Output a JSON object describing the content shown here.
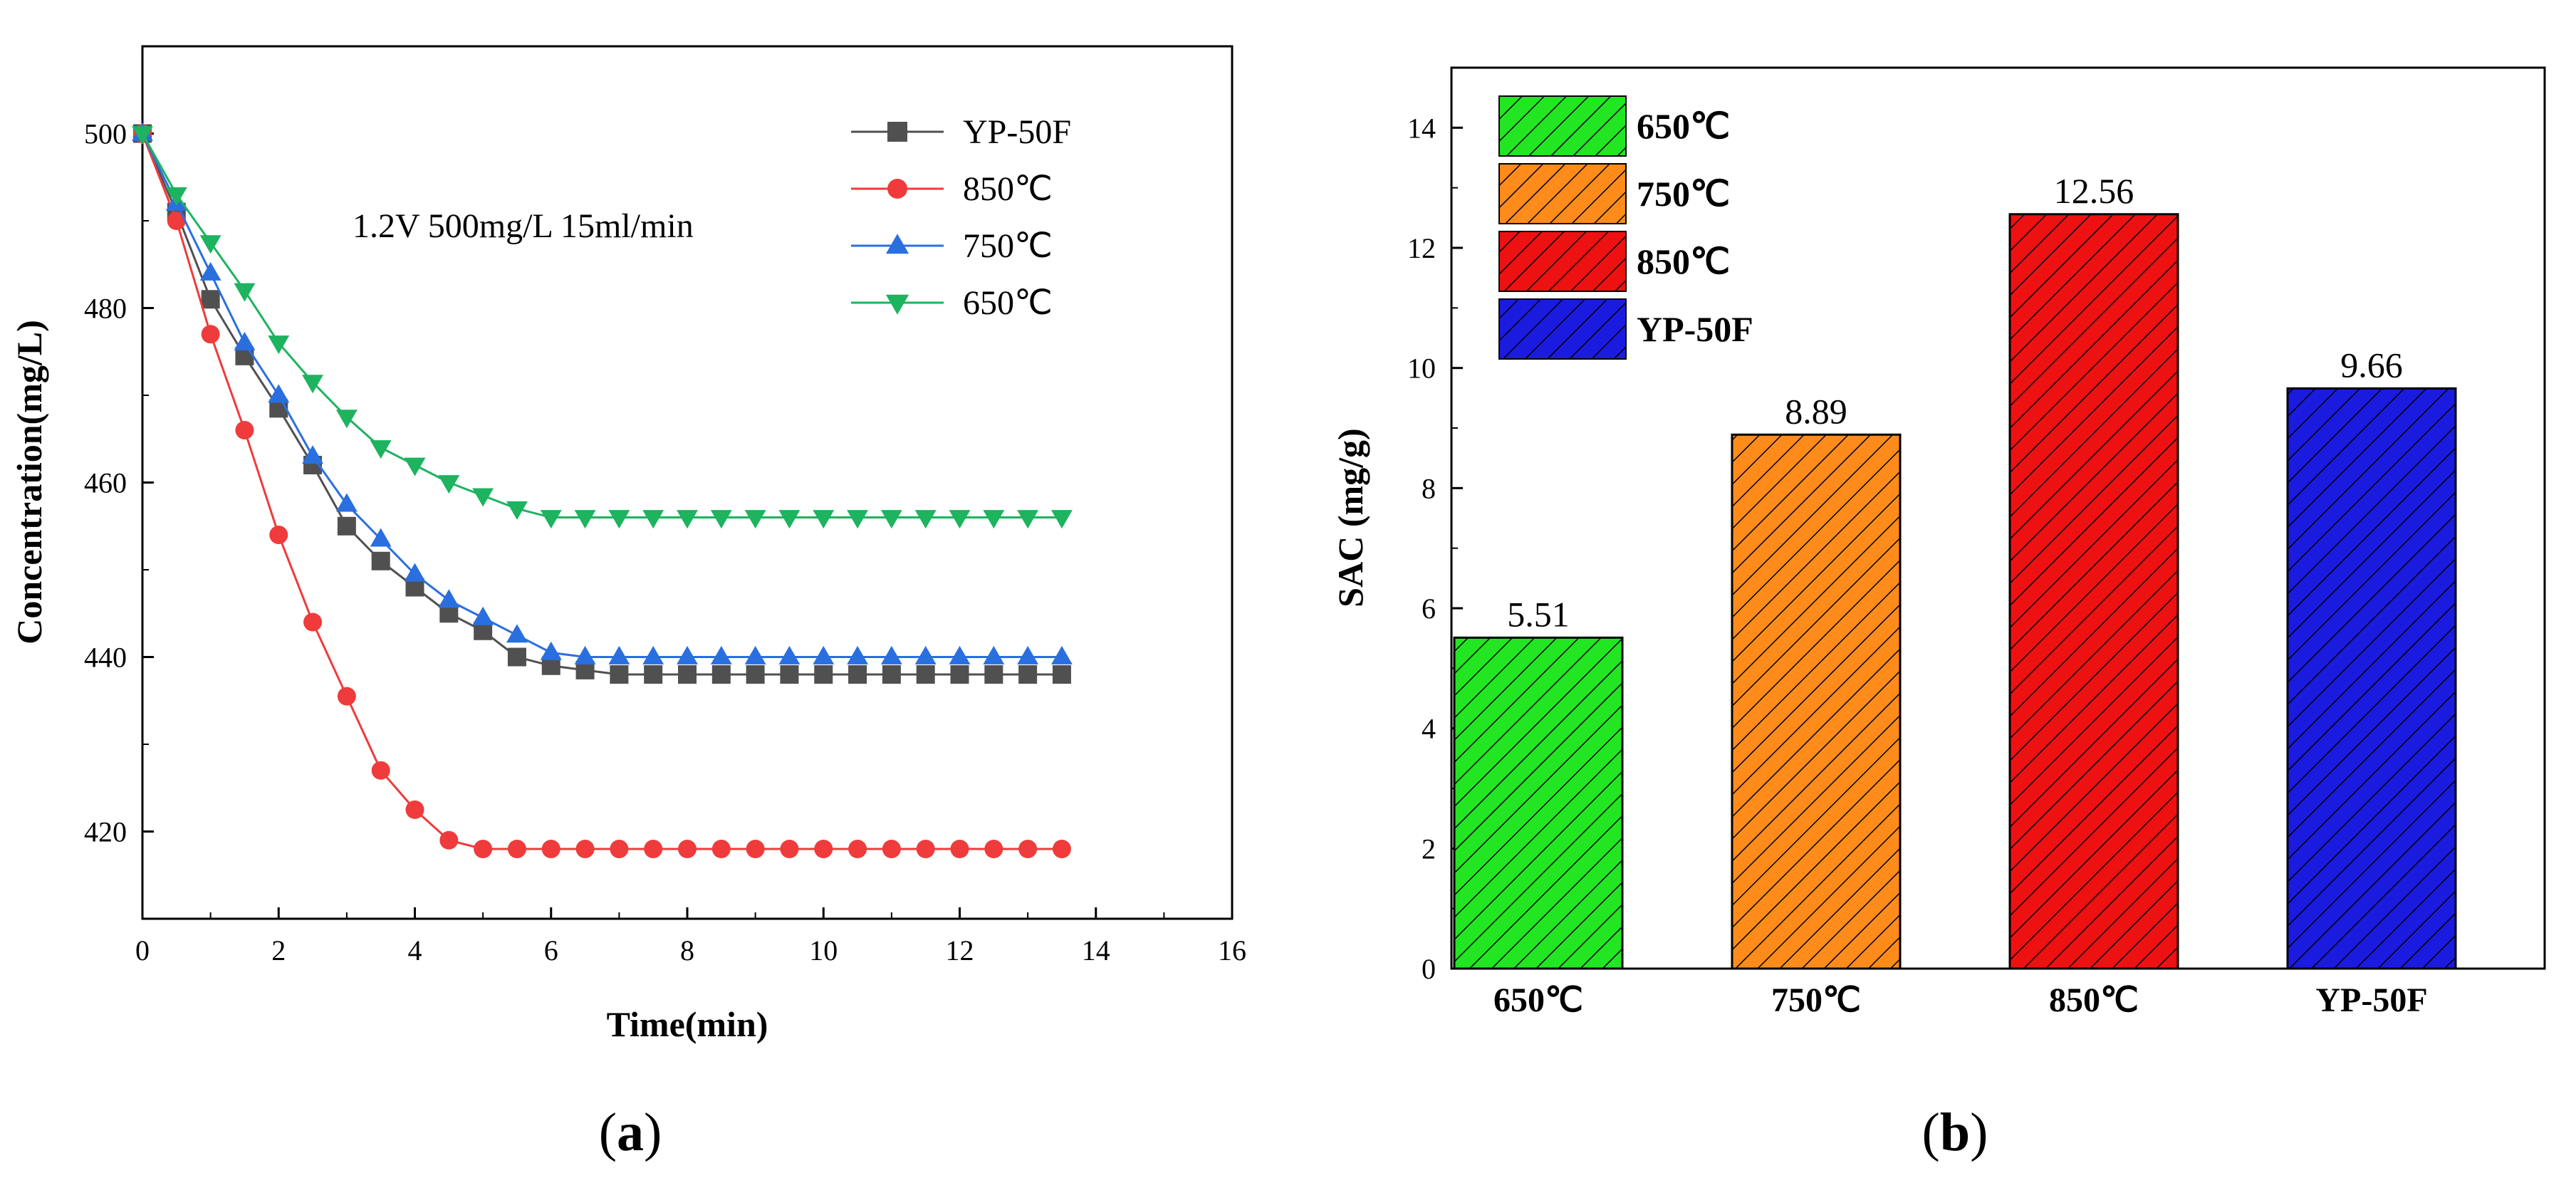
{
  "chart_data": [
    {
      "type": "line",
      "panel_label": "a",
      "xlabel": "Time(min)",
      "ylabel": "Concentration(mg/L)",
      "xlim": [
        0,
        16
      ],
      "ylim": [
        410,
        510
      ],
      "xticks": [
        0,
        2,
        4,
        6,
        8,
        10,
        12,
        14,
        16
      ],
      "yticks": [
        420,
        440,
        460,
        480,
        500
      ],
      "annotation": "1.2V 500mg/L 15ml/min",
      "legend_position": "top-right",
      "x": [
        0,
        0.5,
        1,
        1.5,
        2,
        2.5,
        3,
        3.5,
        4,
        4.5,
        5,
        5.5,
        6,
        6.5,
        7,
        7.5,
        8,
        8.5,
        9,
        9.5,
        10,
        10.5,
        11,
        11.5,
        12,
        12.5,
        13,
        13.5
      ],
      "series": [
        {
          "name": "YP-50F",
          "color": "#505050",
          "marker": "square",
          "values": [
            500,
            491,
            481,
            474.5,
            468.5,
            462,
            455,
            451,
            448,
            445,
            443,
            440,
            439,
            438.5,
            438,
            438,
            438,
            438,
            438,
            438,
            438,
            438,
            438,
            438,
            438,
            438,
            438,
            438
          ]
        },
        {
          "name": "850℃",
          "color": "#ef3b3b",
          "marker": "circle",
          "values": [
            500,
            490,
            477,
            466,
            454,
            444,
            435.5,
            427,
            422.5,
            419,
            418,
            418,
            418,
            418,
            418,
            418,
            418,
            418,
            418,
            418,
            418,
            418,
            418,
            418,
            418,
            418,
            418,
            418
          ]
        },
        {
          "name": "750℃",
          "color": "#2a6fe0",
          "marker": "triangle-up",
          "values": [
            500,
            492,
            484,
            476,
            470,
            463,
            457.5,
            453.5,
            449.5,
            446.5,
            444.5,
            442.5,
            440.5,
            440,
            440,
            440,
            440,
            440,
            440,
            440,
            440,
            440,
            440,
            440,
            440,
            440,
            440,
            440
          ]
        },
        {
          "name": "650℃",
          "color": "#1db35f",
          "marker": "triangle-down",
          "values": [
            500,
            493,
            487.5,
            482,
            476,
            471.5,
            467.5,
            464,
            462,
            460,
            458.5,
            457,
            456,
            456,
            456,
            456,
            456,
            456,
            456,
            456,
            456,
            456,
            456,
            456,
            456,
            456,
            456,
            456
          ]
        }
      ]
    },
    {
      "type": "bar",
      "panel_label": "b",
      "xlabel": "",
      "ylabel": "SAC (mg/g)",
      "ylim": [
        0,
        15
      ],
      "yticks": [
        0,
        2,
        4,
        6,
        8,
        10,
        12,
        14
      ],
      "categories": [
        "650℃",
        "750℃",
        "850℃",
        "YP-50F"
      ],
      "values": [
        5.51,
        8.89,
        12.56,
        9.66
      ],
      "value_labels": [
        "5.51",
        "8.89",
        "12.56",
        "9.66"
      ],
      "colors": [
        "#22e622",
        "#ff8c1a",
        "#ee1111",
        "#1b1be0"
      ],
      "legend_position": "top-left",
      "legend": [
        "650℃",
        "750℃",
        "850℃",
        "YP-50F"
      ]
    }
  ]
}
